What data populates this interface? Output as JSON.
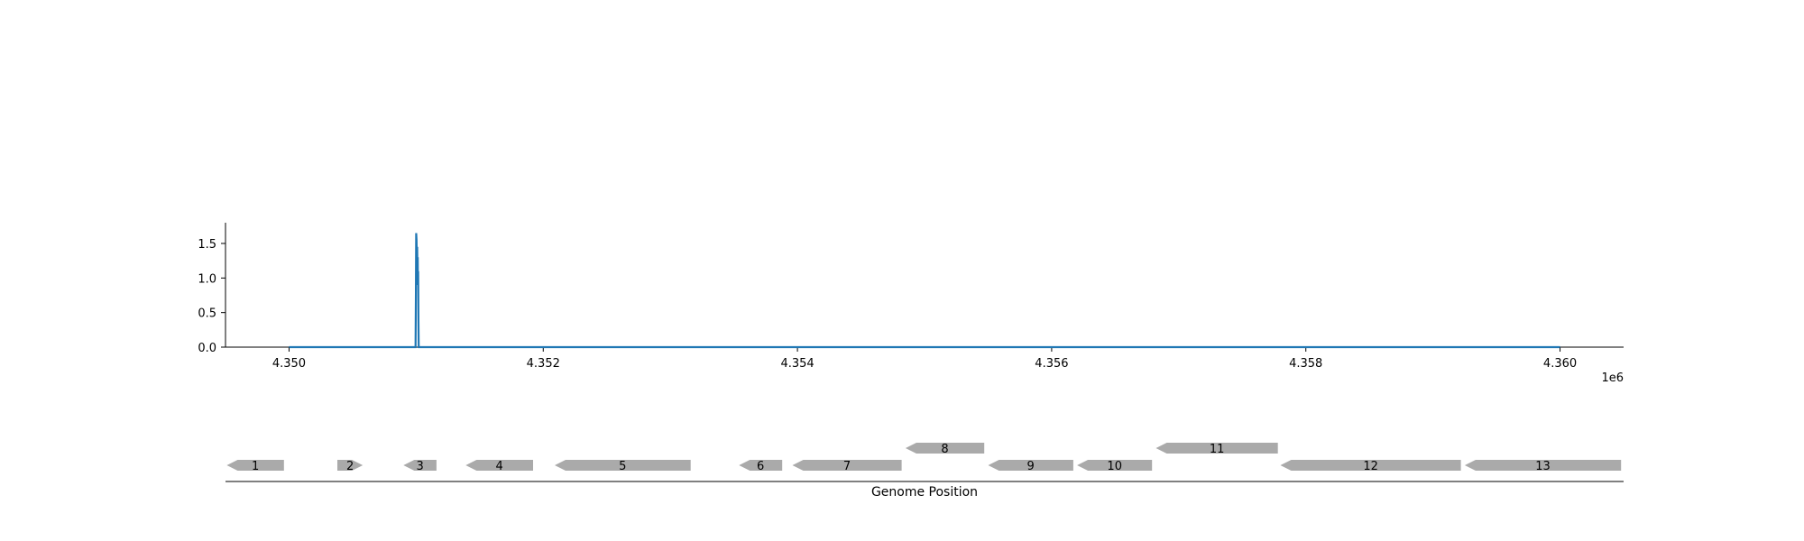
{
  "chart_data": [
    {
      "type": "line",
      "x_multiplier_label": "1e6",
      "xlim": [
        4349500,
        4360500
      ],
      "ylim": [
        0,
        1.8
      ],
      "x_ticks": [
        4350000,
        4352000,
        4354000,
        4356000,
        4358000,
        4360000
      ],
      "x_tick_labels": [
        "4.350",
        "4.352",
        "4.354",
        "4.356",
        "4.358",
        "4.360"
      ],
      "y_ticks": [
        0.0,
        0.5,
        1.0,
        1.5
      ],
      "y_tick_labels": [
        "0.0",
        "0.5",
        "1.0",
        "1.5"
      ],
      "grid": false,
      "line_color": "#1f77b4",
      "series": [
        {
          "x": [
            4350000,
            4350990,
            4350995,
            4350998,
            4351000,
            4351003,
            4351006,
            4351008,
            4351010,
            4351012,
            4351014,
            4351016,
            4351018,
            4351020,
            4351030,
            4360000
          ],
          "y": [
            0,
            0,
            0,
            0.8,
            1.65,
            1.55,
            1.2,
            1.45,
            1.1,
            1.3,
            0.9,
            1.1,
            0.4,
            0,
            0,
            0
          ]
        }
      ]
    },
    {
      "type": "gene-map",
      "xlabel": "Genome Position",
      "gene_color": "#aaaaaa",
      "xlim": [
        4349500,
        4360500
      ],
      "genes": [
        {
          "label": "1",
          "start": 4349510,
          "end": 4349960,
          "strand": "-",
          "level": 0
        },
        {
          "label": "2",
          "start": 4350380,
          "end": 4350580,
          "strand": "+",
          "level": 0
        },
        {
          "label": "3",
          "start": 4350900,
          "end": 4351160,
          "strand": "-",
          "level": 0
        },
        {
          "label": "4",
          "start": 4351390,
          "end": 4351920,
          "strand": "-",
          "level": 0
        },
        {
          "label": "5",
          "start": 4352090,
          "end": 4353160,
          "strand": "-",
          "level": 0
        },
        {
          "label": "6",
          "start": 4353540,
          "end": 4353880,
          "strand": "-",
          "level": 0
        },
        {
          "label": "7",
          "start": 4353960,
          "end": 4354820,
          "strand": "-",
          "level": 0
        },
        {
          "label": "8",
          "start": 4354850,
          "end": 4355470,
          "strand": "-",
          "level": 1
        },
        {
          "label": "9",
          "start": 4355500,
          "end": 4356170,
          "strand": "-",
          "level": 0
        },
        {
          "label": "10",
          "start": 4356200,
          "end": 4356790,
          "strand": "-",
          "level": 0
        },
        {
          "label": "11",
          "start": 4356820,
          "end": 4357780,
          "strand": "-",
          "level": 1
        },
        {
          "label": "12",
          "start": 4357800,
          "end": 4359220,
          "strand": "-",
          "level": 0
        },
        {
          "label": "13",
          "start": 4359250,
          "end": 4360480,
          "strand": "-",
          "level": 0
        }
      ]
    }
  ]
}
